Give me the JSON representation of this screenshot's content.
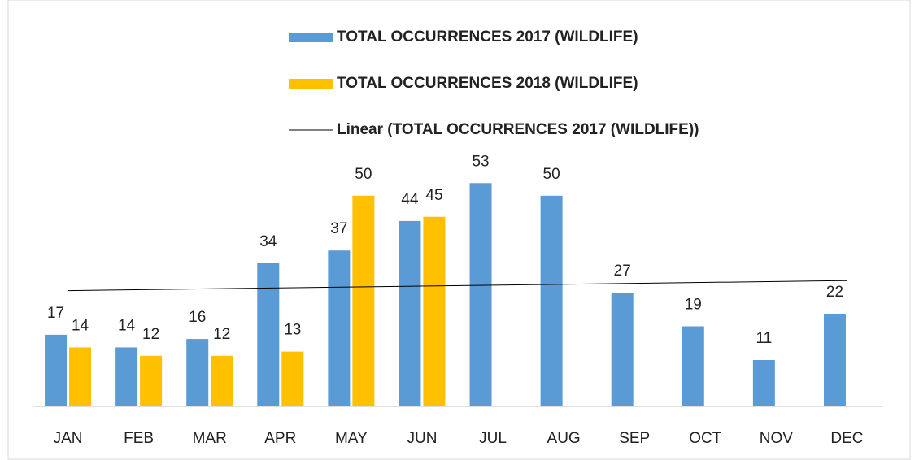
{
  "chart_data": {
    "type": "bar",
    "categories": [
      "JAN",
      "FEB",
      "MAR",
      "APR",
      "MAY",
      "JUN",
      "JUL",
      "AUG",
      "SEP",
      "OCT",
      "NOV",
      "DEC"
    ],
    "series": [
      {
        "name": "TOTAL OCCURRENCES 2017 (WILDLIFE)",
        "color": "#5b9bd5",
        "values": [
          17,
          14,
          16,
          34,
          37,
          44,
          53,
          50,
          27,
          19,
          11,
          22
        ]
      },
      {
        "name": "TOTAL OCCURRENCES 2018 (WILDLIFE)",
        "color": "#ffc000",
        "values": [
          14,
          12,
          12,
          13,
          50,
          45,
          null,
          null,
          null,
          null,
          null,
          null
        ]
      }
    ],
    "trendline": {
      "name": "Linear (TOTAL OCCURRENCES 2017 (WILDLIFE))",
      "type": "linear",
      "series": 0,
      "color": "#000000"
    },
    "ylim": [
      0,
      60
    ]
  }
}
